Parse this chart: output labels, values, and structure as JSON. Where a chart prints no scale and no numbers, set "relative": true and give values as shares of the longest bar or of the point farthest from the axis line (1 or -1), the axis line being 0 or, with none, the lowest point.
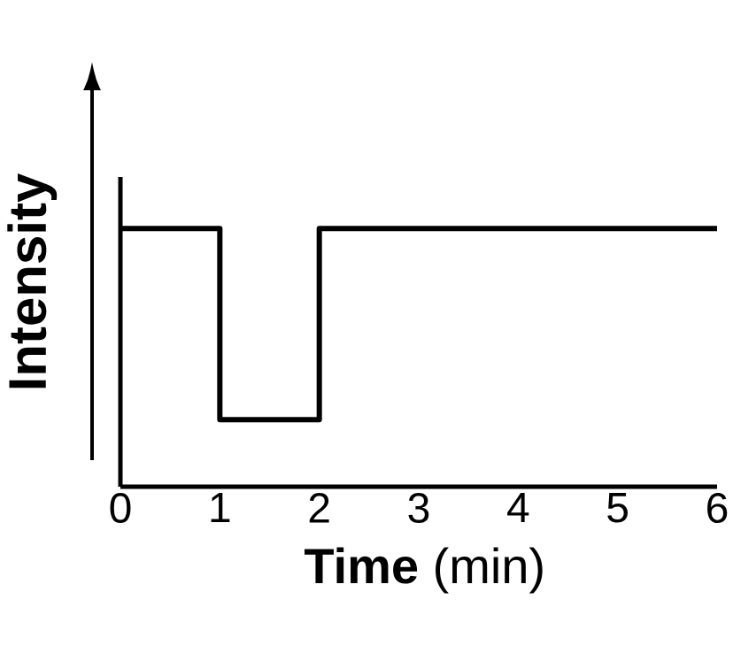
{
  "chart_data": {
    "type": "step",
    "xlabel": "**Time** (min)",
    "ylabel": "Intensity",
    "x": [
      0,
      1,
      2,
      6
    ],
    "values": [
      1,
      0.26,
      1,
      1
    ],
    "color": "#000000",
    "relative": true,
    "xlim": [
      0,
      6
    ],
    "xticks": [
      0,
      1,
      2,
      3,
      4,
      5,
      6
    ]
  }
}
